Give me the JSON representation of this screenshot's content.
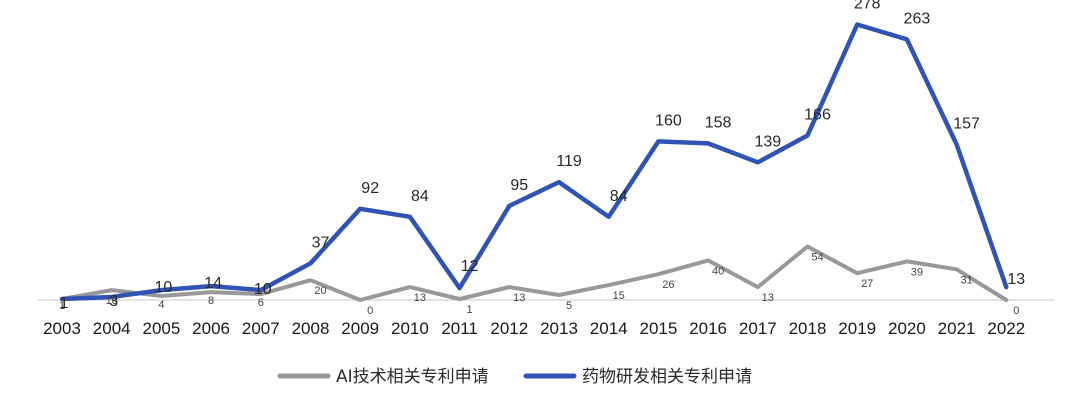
{
  "chart_data": {
    "type": "line",
    "title": "",
    "xlabel": "",
    "ylabel": "",
    "categories": [
      "2003",
      "2004",
      "2005",
      "2006",
      "2007",
      "2008",
      "2009",
      "2010",
      "2011",
      "2012",
      "2013",
      "2014",
      "2015",
      "2016",
      "2017",
      "2018",
      "2019",
      "2020",
      "2021",
      "2022"
    ],
    "series": [
      {
        "name": "AI技术相关专利申请",
        "color": "#999999",
        "values": [
          1,
          10,
          4,
          8,
          6,
          20,
          0,
          13,
          1,
          13,
          5,
          15,
          26,
          40,
          13,
          54,
          27,
          39,
          31,
          0
        ]
      },
      {
        "name": "药物研发相关专利申请",
        "color": "#2f54b5",
        "values": [
          1,
          3,
          10,
          14,
          10,
          37,
          92,
          84,
          12,
          95,
          119,
          84,
          160,
          158,
          139,
          166,
          278,
          263,
          157,
          13
        ]
      }
    ],
    "ylim": [
      0,
      280
    ],
    "grid": false,
    "legend_position": "bottom"
  }
}
